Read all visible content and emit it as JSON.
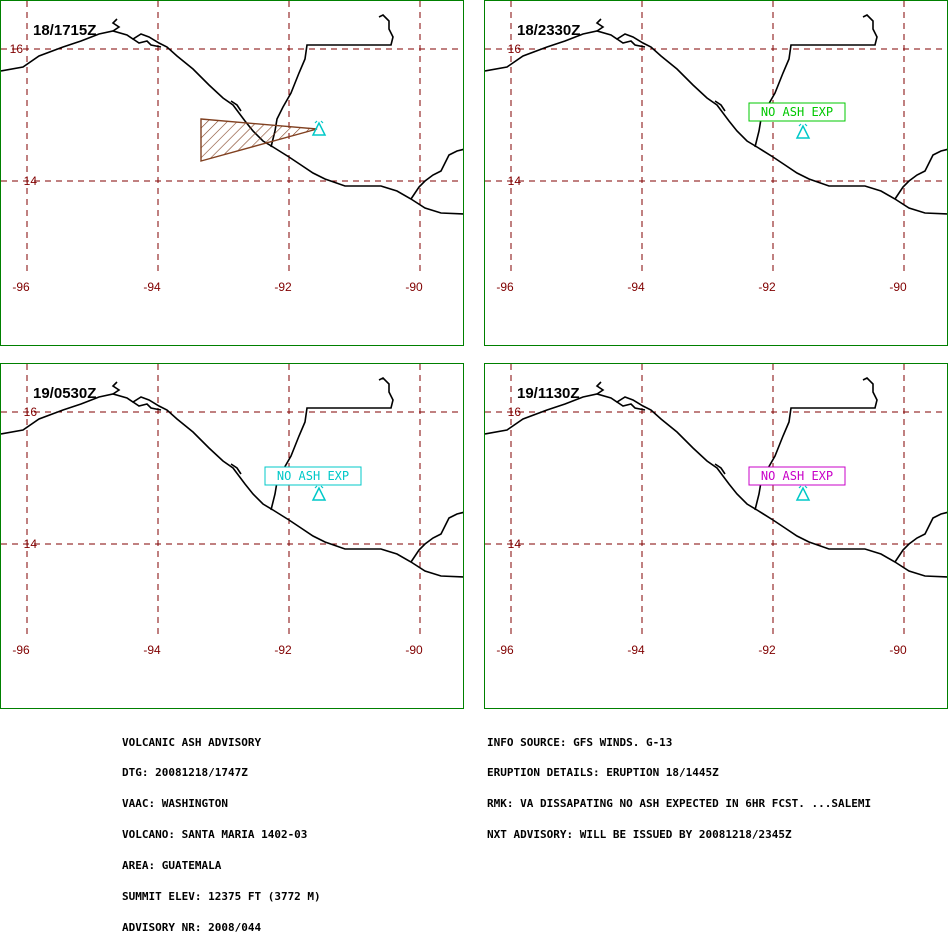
{
  "panels": [
    {
      "time": "18/1715Z",
      "status": "ash-plume",
      "label": "",
      "label_color": ""
    },
    {
      "time": "18/2330Z",
      "status": "no-ash",
      "label": "NO ASH EXP",
      "label_color": "#00c800"
    },
    {
      "time": "19/0530Z",
      "status": "no-ash",
      "label": "NO ASH EXP",
      "label_color": "#00c8c8"
    },
    {
      "time": "19/1130Z",
      "status": "no-ash",
      "label": "NO ASH EXP",
      "label_color": "#c800c8"
    }
  ],
  "map": {
    "lat_labels": [
      "16",
      "14"
    ],
    "lon_labels": [
      "-96",
      "-94",
      "-92",
      "-90"
    ],
    "volcano_icon": "volcano-triangle-icon",
    "volcano_color": "#00c8c8",
    "plume_color": "#804020",
    "grid_color": "#800000"
  },
  "advisory_left": [
    "VOLCANIC ASH ADVISORY",
    "DTG: 20081218/1747Z",
    "VAAC: WASHINGTON",
    "VOLCANO: SANTA MARIA 1402-03",
    "AREA: GUATEMALA",
    "SUMMIT ELEV: 12375 FT (3772 M)",
    "ADVISORY NR: 2008/044"
  ],
  "advisory_right": [
    "INFO SOURCE: GFS WINDS. G-13",
    "ERUPTION DETAILS: ERUPTION 18/1445Z",
    "RMK: VA DISSAPATING NO ASH EXPECTED IN 6HR FCST. ...SALEMI",
    "NXT ADVISORY: WILL BE ISSUED BY 20081218/2345Z"
  ]
}
